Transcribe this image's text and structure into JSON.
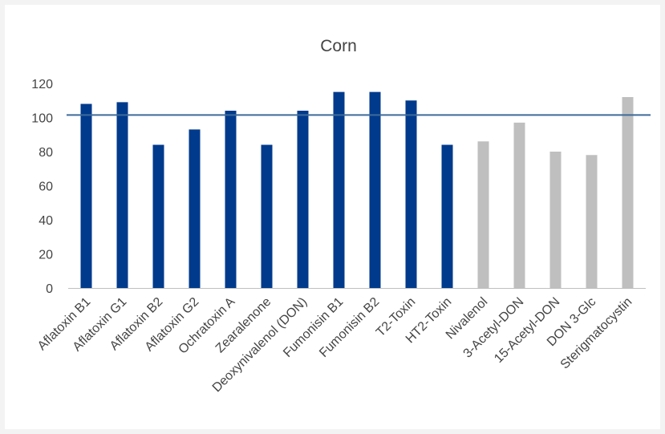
{
  "chart_data": {
    "type": "bar",
    "title": "Corn",
    "xlabel": "",
    "ylabel": "",
    "ylim": [
      0,
      120
    ],
    "yticks": [
      0,
      20,
      40,
      60,
      80,
      100,
      120
    ],
    "grid": false,
    "legend": "none",
    "categories": [
      "Aflatoxin B1",
      "Aflatoxin G1",
      "Aflatoxin B2",
      "Aflatoxin G2",
      "Ochratoxin A",
      "Zearalenone",
      "Deoxynivalenol (DON)",
      "Fumonisin B1",
      "Fumonisin B2",
      "T2-Toxin",
      "HT2-Toxin",
      "Nivalenol",
      "3-Acetyl-DON",
      "15-Acetyl-DON",
      "DON 3-Glc",
      "Sterigmatocystin"
    ],
    "values": [
      108,
      109,
      84,
      93,
      104,
      84,
      104,
      115,
      115,
      110,
      84,
      86,
      97,
      80,
      78,
      112
    ],
    "bar_colors": [
      "#003a8c",
      "#003a8c",
      "#003a8c",
      "#003a8c",
      "#003a8c",
      "#003a8c",
      "#003a8c",
      "#003a8c",
      "#003a8c",
      "#003a8c",
      "#003a8c",
      "#bfbfbf",
      "#bfbfbf",
      "#bfbfbf",
      "#bfbfbf",
      "#bfbfbf"
    ],
    "reference_line": {
      "value": 101.5,
      "color": "#3f6b9a"
    },
    "colors": {
      "primary": "#003a8c",
      "secondary": "#bfbfbf",
      "axis": "#bfbfbf",
      "text": "#444444"
    }
  }
}
